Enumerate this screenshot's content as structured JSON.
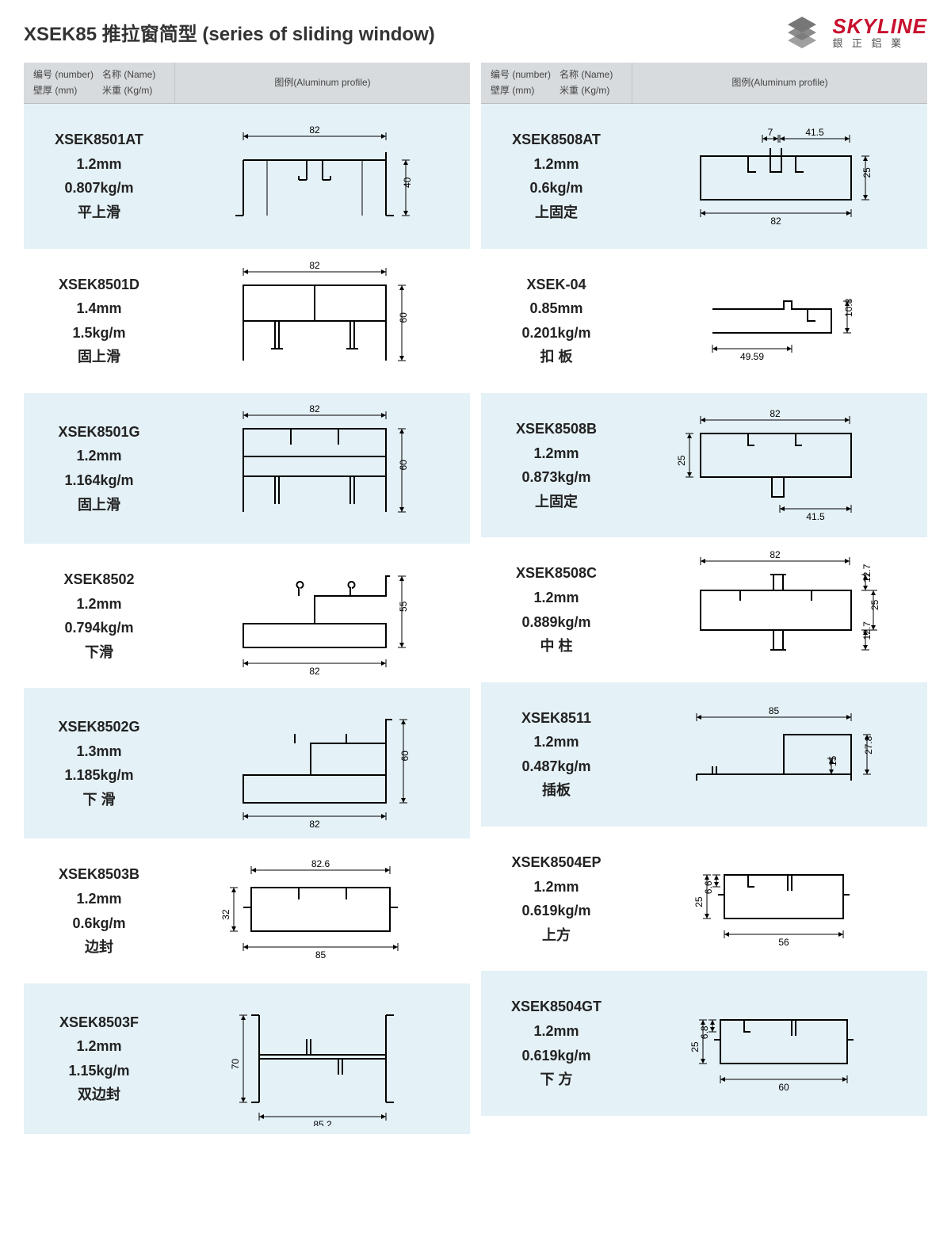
{
  "page": {
    "title": "XSEK85 推拉窗简型 (series of sliding window)",
    "brand": "SKYLINE",
    "brand_sub": "銀 正 鋁 業",
    "brand_color": "#c8102e",
    "logo_gray": "#777777"
  },
  "headers": {
    "number_label": "编号 (number)",
    "name_label": "名称 (Name)",
    "thickness_label": "壁厚 (mm)",
    "weight_label": "米重 (Kg/m)",
    "profile_label": "图例(Aluminum profile)"
  },
  "colors": {
    "row_alt_bg": "#e4f1f6",
    "header_bg": "#d7dbde",
    "line": "#000000"
  },
  "profiles": [
    {
      "number": "XSEK8501AT",
      "thickness": "1.2mm",
      "weight": "0.807kg/m",
      "name": "平上滑",
      "dims": {
        "w": "82",
        "h": "40"
      },
      "shape": "ushape_mid"
    },
    {
      "number": "XSEK8508AT",
      "thickness": "1.2mm",
      "weight": "0.6kg/m",
      "name": "上固定",
      "dims": {
        "w": "82",
        "w2": "41.5",
        "w3": "7",
        "h": "25"
      },
      "shape": "box_top_notches"
    },
    {
      "number": "XSEK8501D",
      "thickness": "1.4mm",
      "weight": "1.5kg/m",
      "name": "固上滑",
      "dims": {
        "w": "82",
        "h": "60"
      },
      "shape": "double_channel"
    },
    {
      "number": "XSEK-04",
      "thickness": "0.85mm",
      "weight": "0.201kg/m",
      "name": "扣 板",
      "dims": {
        "w": "49.59",
        "h": "10.8"
      },
      "shape": "clip"
    },
    {
      "number": "XSEK8501G",
      "thickness": "1.2mm",
      "weight": "1.164kg/m",
      "name": "固上滑",
      "dims": {
        "w": "82",
        "h": "60"
      },
      "shape": "triple_channel"
    },
    {
      "number": "XSEK8508B",
      "thickness": "1.2mm",
      "weight": "0.873kg/m",
      "name": "上固定",
      "dims": {
        "w": "82",
        "w2": "41.5",
        "h": "25"
      },
      "shape": "box_bottom_tab"
    },
    {
      "number": "XSEK8502",
      "thickness": "1.2mm",
      "weight": "0.794kg/m",
      "name": "下滑",
      "dims": {
        "w": "82",
        "h": "55"
      },
      "shape": "step_rail"
    },
    {
      "number": "XSEK8508C",
      "thickness": "1.2mm",
      "weight": "0.889kg/m",
      "name": "中 柱",
      "dims": {
        "w": "82",
        "h": "25",
        "h2": "12.7",
        "h3": "12.7"
      },
      "shape": "box_both_tabs"
    },
    {
      "number": "XSEK8502G",
      "thickness": "1.3mm",
      "weight": "1.185kg/m",
      "name": "下 滑",
      "dims": {
        "w": "82",
        "h": "60"
      },
      "shape": "step_rail_deep"
    },
    {
      "number": "XSEK8511",
      "thickness": "1.2mm",
      "weight": "0.487kg/m",
      "name": "插板",
      "dims": {
        "w": "85",
        "h": "27.8",
        "h2": "15"
      },
      "shape": "insert_plate"
    },
    {
      "number": "XSEK8503B",
      "thickness": "1.2mm",
      "weight": "0.6kg/m",
      "name": "边封",
      "dims": {
        "w": "85",
        "w2": "82.6",
        "h": "32"
      },
      "shape": "edge_seal"
    },
    {
      "number": "XSEK8504EP",
      "thickness": "1.2mm",
      "weight": "0.619kg/m",
      "name": "上方",
      "dims": {
        "w": "56",
        "h": "25",
        "h2": "6.6"
      },
      "shape": "upper_square"
    },
    {
      "number": "XSEK8503F",
      "thickness": "1.2mm",
      "weight": "1.15kg/m",
      "name": "双边封",
      "dims": {
        "w": "85.2",
        "h": "70"
      },
      "shape": "double_edge_seal"
    },
    {
      "number": "XSEK8504GT",
      "thickness": "1.2mm",
      "weight": "0.619kg/m",
      "name": "下 方",
      "dims": {
        "w": "60",
        "h": "25",
        "h2": "6.8"
      },
      "shape": "lower_square"
    }
  ]
}
